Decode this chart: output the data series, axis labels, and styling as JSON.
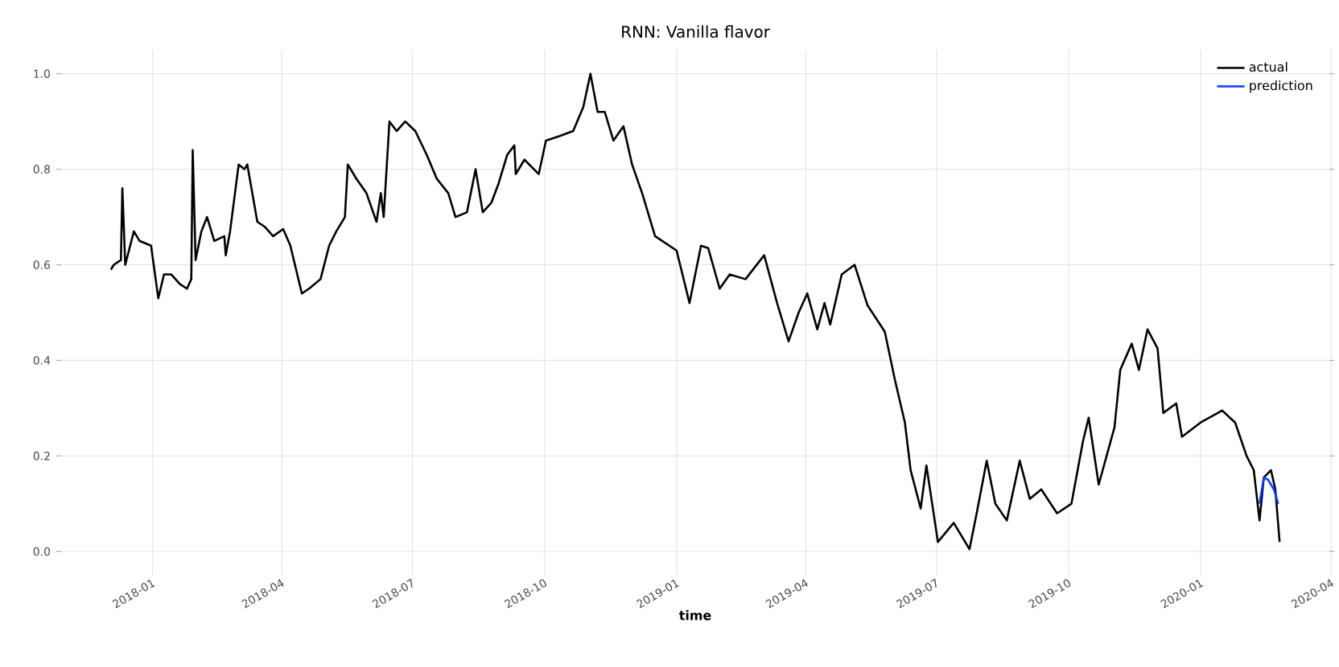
{
  "chart_data": {
    "type": "line",
    "title": "RNN: Vanilla flavor",
    "xlabel": "time",
    "xlim": [
      "2017-10-26",
      "2020-04-03"
    ],
    "ylim": [
      -0.05,
      1.05
    ],
    "xticks": [
      "2018-01",
      "2018-04",
      "2018-07",
      "2018-10",
      "2019-01",
      "2019-04",
      "2019-07",
      "2019-10",
      "2020-01",
      "2020-04"
    ],
    "yticks": [
      {
        "value": 0,
        "label": "0.0"
      },
      {
        "value": 0.2,
        "label": "0.2"
      },
      {
        "value": 0.4,
        "label": "0.4"
      },
      {
        "value": 0.6,
        "label": "0.6"
      },
      {
        "value": 0.8,
        "label": "0.8"
      },
      {
        "value": 1,
        "label": "1.0"
      }
    ],
    "grid": true,
    "legend": "top right",
    "marker": "none",
    "line_style": "solid",
    "series": [
      {
        "name": "actual",
        "color": "#000000",
        "x": [
          "2017-12-03",
          "2017-12-05",
          "2017-12-10",
          "2017-12-11",
          "2017-12-13",
          "2017-12-19",
          "2017-12-23",
          "2017-12-31",
          "2018-01-05",
          "2018-01-09",
          "2018-01-14",
          "2018-01-20",
          "2018-01-25",
          "2018-01-28",
          "2018-01-29",
          "2018-01-31",
          "2018-02-04",
          "2018-02-08",
          "2018-02-13",
          "2018-02-20",
          "2018-02-21",
          "2018-02-24",
          "2018-03-02",
          "2018-03-06",
          "2018-03-08",
          "2018-03-15",
          "2018-03-20",
          "2018-03-26",
          "2018-04-02",
          "2018-04-07",
          "2018-04-15",
          "2018-04-20",
          "2018-04-28",
          "2018-05-04",
          "2018-05-09",
          "2018-05-15",
          "2018-05-17",
          "2018-05-23",
          "2018-05-30",
          "2018-06-06",
          "2018-06-09",
          "2018-06-11",
          "2018-06-15",
          "2018-06-20",
          "2018-06-26",
          "2018-07-03",
          "2018-07-11",
          "2018-07-18",
          "2018-07-26",
          "2018-07-31",
          "2018-08-08",
          "2018-08-14",
          "2018-08-19",
          "2018-08-25",
          "2018-08-30",
          "2018-09-05",
          "2018-09-10",
          "2018-09-11",
          "2018-09-17",
          "2018-09-27",
          "2018-10-02",
          "2018-10-12",
          "2018-10-21",
          "2018-10-28",
          "2018-11-02",
          "2018-11-07",
          "2018-11-12",
          "2018-11-18",
          "2018-11-25",
          "2018-12-01",
          "2018-12-08",
          "2018-12-17",
          "2019-01-01",
          "2019-01-10",
          "2019-01-18",
          "2019-01-23",
          "2019-01-31",
          "2019-02-07",
          "2019-02-18",
          "2019-03-03",
          "2019-03-12",
          "2019-03-20",
          "2019-03-27",
          "2019-04-02",
          "2019-04-09",
          "2019-04-14",
          "2019-04-18",
          "2019-04-26",
          "2019-05-05",
          "2019-05-14",
          "2019-05-26",
          "2019-06-02",
          "2019-06-09",
          "2019-06-13",
          "2019-06-20",
          "2019-06-24",
          "2019-07-02",
          "2019-07-13",
          "2019-07-24",
          "2019-07-29",
          "2019-08-05",
          "2019-08-11",
          "2019-08-19",
          "2019-08-28",
          "2019-09-04",
          "2019-09-12",
          "2019-09-23",
          "2019-10-03",
          "2019-10-11",
          "2019-10-15",
          "2019-10-22",
          "2019-11-02",
          "2019-11-06",
          "2019-11-14",
          "2019-11-19",
          "2019-11-25",
          "2019-12-02",
          "2019-12-06",
          "2019-12-15",
          "2019-12-19",
          "2020-01-01",
          "2020-01-16",
          "2020-01-25",
          "2020-02-02",
          "2020-02-07",
          "2020-02-11",
          "2020-02-14",
          "2020-02-19",
          "2020-02-22",
          "2020-02-25"
        ],
        "values": [
          0.59,
          0.6,
          0.61,
          0.76,
          0.6,
          0.67,
          0.65,
          0.64,
          0.53,
          0.58,
          0.58,
          0.56,
          0.55,
          0.57,
          0.84,
          0.61,
          0.67,
          0.7,
          0.65,
          0.66,
          0.62,
          0.67,
          0.81,
          0.8,
          0.81,
          0.69,
          0.68,
          0.66,
          0.675,
          0.64,
          0.54,
          0.55,
          0.57,
          0.64,
          0.67,
          0.7,
          0.81,
          0.78,
          0.75,
          0.69,
          0.75,
          0.7,
          0.9,
          0.88,
          0.9,
          0.88,
          0.83,
          0.78,
          0.75,
          0.7,
          0.71,
          0.8,
          0.71,
          0.73,
          0.77,
          0.83,
          0.85,
          0.79,
          0.82,
          0.79,
          0.86,
          0.87,
          0.88,
          0.93,
          1.0,
          0.92,
          0.92,
          0.86,
          0.89,
          0.81,
          0.75,
          0.66,
          0.63,
          0.52,
          0.64,
          0.635,
          0.55,
          0.58,
          0.57,
          0.62,
          0.52,
          0.44,
          0.5,
          0.54,
          0.465,
          0.52,
          0.475,
          0.58,
          0.6,
          0.515,
          0.46,
          0.36,
          0.27,
          0.17,
          0.09,
          0.18,
          0.02,
          0.06,
          0.005,
          0.08,
          0.19,
          0.1,
          0.065,
          0.19,
          0.11,
          0.13,
          0.08,
          0.1,
          0.23,
          0.28,
          0.14,
          0.26,
          0.38,
          0.435,
          0.38,
          0.465,
          0.425,
          0.29,
          0.31,
          0.24,
          0.27,
          0.295,
          0.27,
          0.2,
          0.17,
          0.065,
          0.155,
          0.17,
          0.13,
          0.02
        ]
      },
      {
        "name": "prediction",
        "color": "#0a3cff",
        "x": [
          "2020-02-11",
          "2020-02-14",
          "2020-02-17",
          "2020-02-21",
          "2020-02-24"
        ],
        "values": [
          0.1,
          0.155,
          0.15,
          0.13,
          0.1
        ]
      }
    ]
  }
}
